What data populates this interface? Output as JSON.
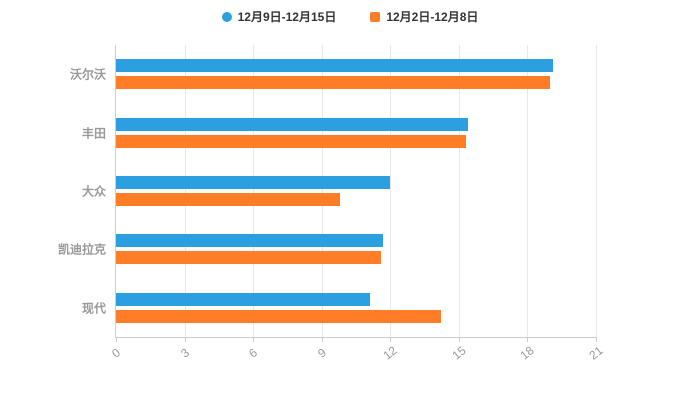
{
  "chart_data": {
    "type": "bar",
    "orientation": "horizontal",
    "title": "",
    "xlabel": "",
    "ylabel": "",
    "categories": [
      "沃尔沃",
      "丰田",
      "大众",
      "凯迪拉克",
      "现代"
    ],
    "series": [
      {
        "name": "12月9日-12月15日",
        "color": "#2B9FE0",
        "marker": "circle",
        "values": [
          19.1,
          15.4,
          12.0,
          11.7,
          11.1
        ]
      },
      {
        "name": "12月2日-12月8日",
        "color": "#FF7D26",
        "marker": "square",
        "values": [
          19.0,
          15.3,
          9.8,
          11.6,
          14.2
        ]
      }
    ],
    "xticks": [
      0,
      3,
      6,
      9,
      12,
      15,
      18,
      21
    ],
    "xlim": [
      0,
      21
    ],
    "legend_position": "top-center",
    "grid": true
  },
  "colors": {
    "background": "#ffffff",
    "axis_line": "#cccccc",
    "grid_line": "#e8e8e8",
    "tick_label": "#999999",
    "category_label": "#999999",
    "legend_text": "#333333"
  }
}
